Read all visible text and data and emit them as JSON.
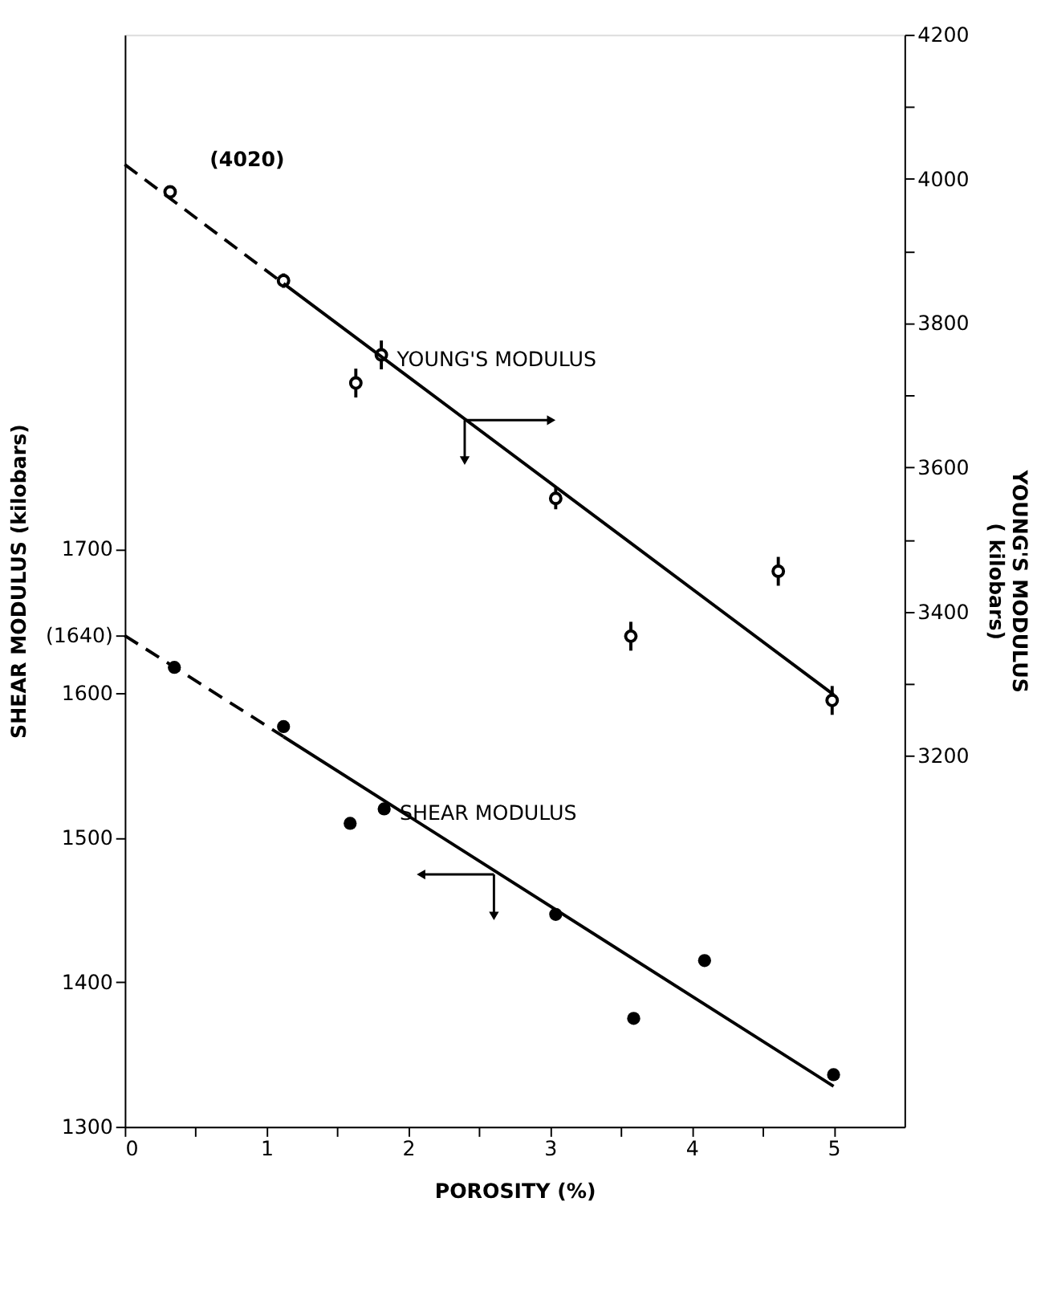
{
  "chart_data": {
    "type": "scatter",
    "xlabel": "POROSITY   (%)",
    "ylabel": "SHEAR MODULUS (kilobars)",
    "y2label": "YOUNG'S MODULUS\n( kilobars)",
    "xlim": [
      0,
      5.5
    ],
    "xticks": [
      0,
      {
        "value": 0.5,
        "label": null
      },
      1,
      {
        "value": 1.5,
        "label": null
      },
      2,
      {
        "value": 2.5,
        "label": null
      },
      3,
      {
        "value": 3.5,
        "label": null
      },
      4,
      {
        "value": 4.5,
        "label": null
      },
      5
    ],
    "ylim": [
      1300,
      2056
    ],
    "yticks": [
      1300,
      1400,
      1500,
      1600,
      {
        "value": 1640,
        "label": "(1640)"
      },
      1700
    ],
    "y2lim": [
      2686,
      4200
    ],
    "y2ticks": [
      3200,
      {
        "value": 3300,
        "label": null
      },
      3400,
      {
        "value": 3500,
        "label": null
      },
      3600,
      {
        "value": 3700,
        "label": null
      },
      3800,
      {
        "value": 3900,
        "label": null
      },
      4000,
      {
        "value": 4100,
        "label": null
      },
      4200
    ],
    "grid": false,
    "annotations": [
      "(4020)"
    ],
    "series": [
      {
        "name": "YOUNG'S MODULUS",
        "axis": "y2",
        "marker": "circle",
        "color": "#000000",
        "x": [
          0.32,
          1.12,
          1.63,
          1.81,
          3.04,
          3.57,
          4.61,
          4.99
        ],
        "values": [
          3982,
          3859,
          3717,
          3756,
          3557,
          3366,
          3456,
          3277
        ],
        "errors": [
          null,
          10,
          20,
          20,
          15,
          20,
          20,
          20
        ]
      },
      {
        "type": "line",
        "axis": "y2",
        "line_style": "dashed",
        "color": "#000000",
        "x": [
          0,
          1.12
        ],
        "values": [
          4020,
          3855
        ]
      },
      {
        "type": "line",
        "axis": "y2",
        "line_style": "solid",
        "color": "#000000",
        "x": [
          1.12,
          5.0
        ],
        "values": [
          3855,
          3285
        ]
      },
      {
        "name": "SHEAR MODULUS",
        "axis": "y",
        "marker": "circle",
        "color": "#000000",
        "x": [
          0.35,
          1.12,
          1.59,
          1.83,
          3.04,
          3.59,
          4.09,
          5.0
        ],
        "values": [
          1618,
          1577,
          1510,
          1520,
          1447,
          1375,
          1415,
          1336
        ]
      },
      {
        "type": "line",
        "axis": "y",
        "line_style": "dashed",
        "color": "#000000",
        "x": [
          0,
          1.12
        ],
        "values": [
          1640,
          1570
        ]
      },
      {
        "type": "line",
        "axis": "y",
        "line_style": "solid",
        "color": "#000000",
        "x": [
          1.12,
          5.0
        ],
        "values": [
          1570,
          1328
        ]
      }
    ]
  }
}
